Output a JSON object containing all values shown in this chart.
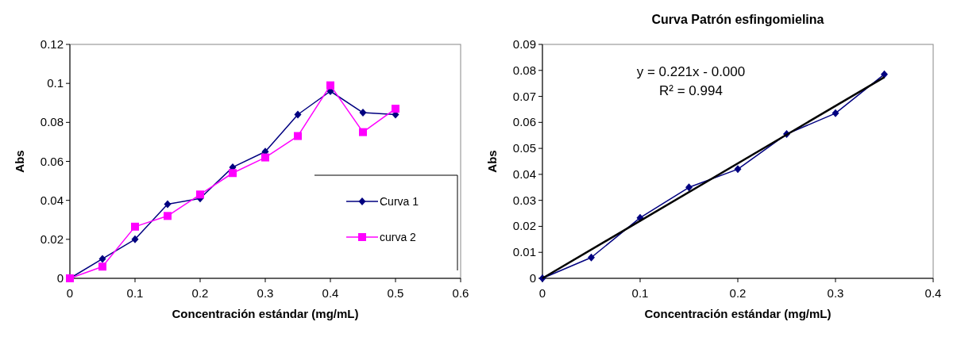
{
  "chart_data": [
    {
      "type": "line",
      "xlabel": "Concentración estándar (mg/mL)",
      "ylabel": "Abs",
      "x": [
        0,
        0.05,
        0.1,
        0.15,
        0.2,
        0.25,
        0.3,
        0.35,
        0.4,
        0.45,
        0.5
      ],
      "xlim": [
        0,
        0.6
      ],
      "xticks": [
        0,
        0.1,
        0.2,
        0.3,
        0.4,
        0.5,
        0.6
      ],
      "ylim": [
        0,
        0.12
      ],
      "yticks": [
        0,
        0.02,
        0.04,
        0.06,
        0.08,
        0.1,
        0.12
      ],
      "legend": "bottom right",
      "grid": false,
      "series": [
        {
          "name": "Curva 1",
          "color": "#000080",
          "marker": "diamond",
          "values": [
            0,
            0.01,
            0.02,
            0.038,
            0.041,
            0.057,
            0.065,
            0.084,
            0.096,
            0.085,
            0.084
          ]
        },
        {
          "name": "curva 2",
          "color": "#ff00ff",
          "marker": "square",
          "values": [
            0,
            0.006,
            0.0265,
            0.032,
            0.043,
            0.054,
            0.062,
            0.073,
            0.099,
            0.075,
            0.087
          ]
        }
      ]
    },
    {
      "type": "line",
      "title": "Curva Patrón esfingomielina",
      "xlabel": "Concentración estándar (mg/mL)",
      "ylabel": "Abs",
      "x": [
        0,
        0.05,
        0.1,
        0.15,
        0.2,
        0.25,
        0.3,
        0.35
      ],
      "xlim": [
        0,
        0.4
      ],
      "xticks": [
        0,
        0.1,
        0.2,
        0.3,
        0.4
      ],
      "ylim": [
        0,
        0.09
      ],
      "yticks": [
        0,
        0.01,
        0.02,
        0.03,
        0.04,
        0.05,
        0.06,
        0.07,
        0.08,
        0.09
      ],
      "legend": false,
      "grid": false,
      "annotations": [
        "y = 0.221x - 0.000",
        "R² = 0.994"
      ],
      "series": [
        {
          "color": "#000080",
          "marker": "diamond",
          "values": [
            0,
            0.008,
            0.0233,
            0.035,
            0.042,
            0.0555,
            0.0635,
            0.0785
          ]
        },
        {
          "type": "line",
          "color": "#000000",
          "marker": "none",
          "x": [
            0,
            0.35
          ],
          "values": [
            0,
            0.0774
          ]
        }
      ]
    }
  ]
}
